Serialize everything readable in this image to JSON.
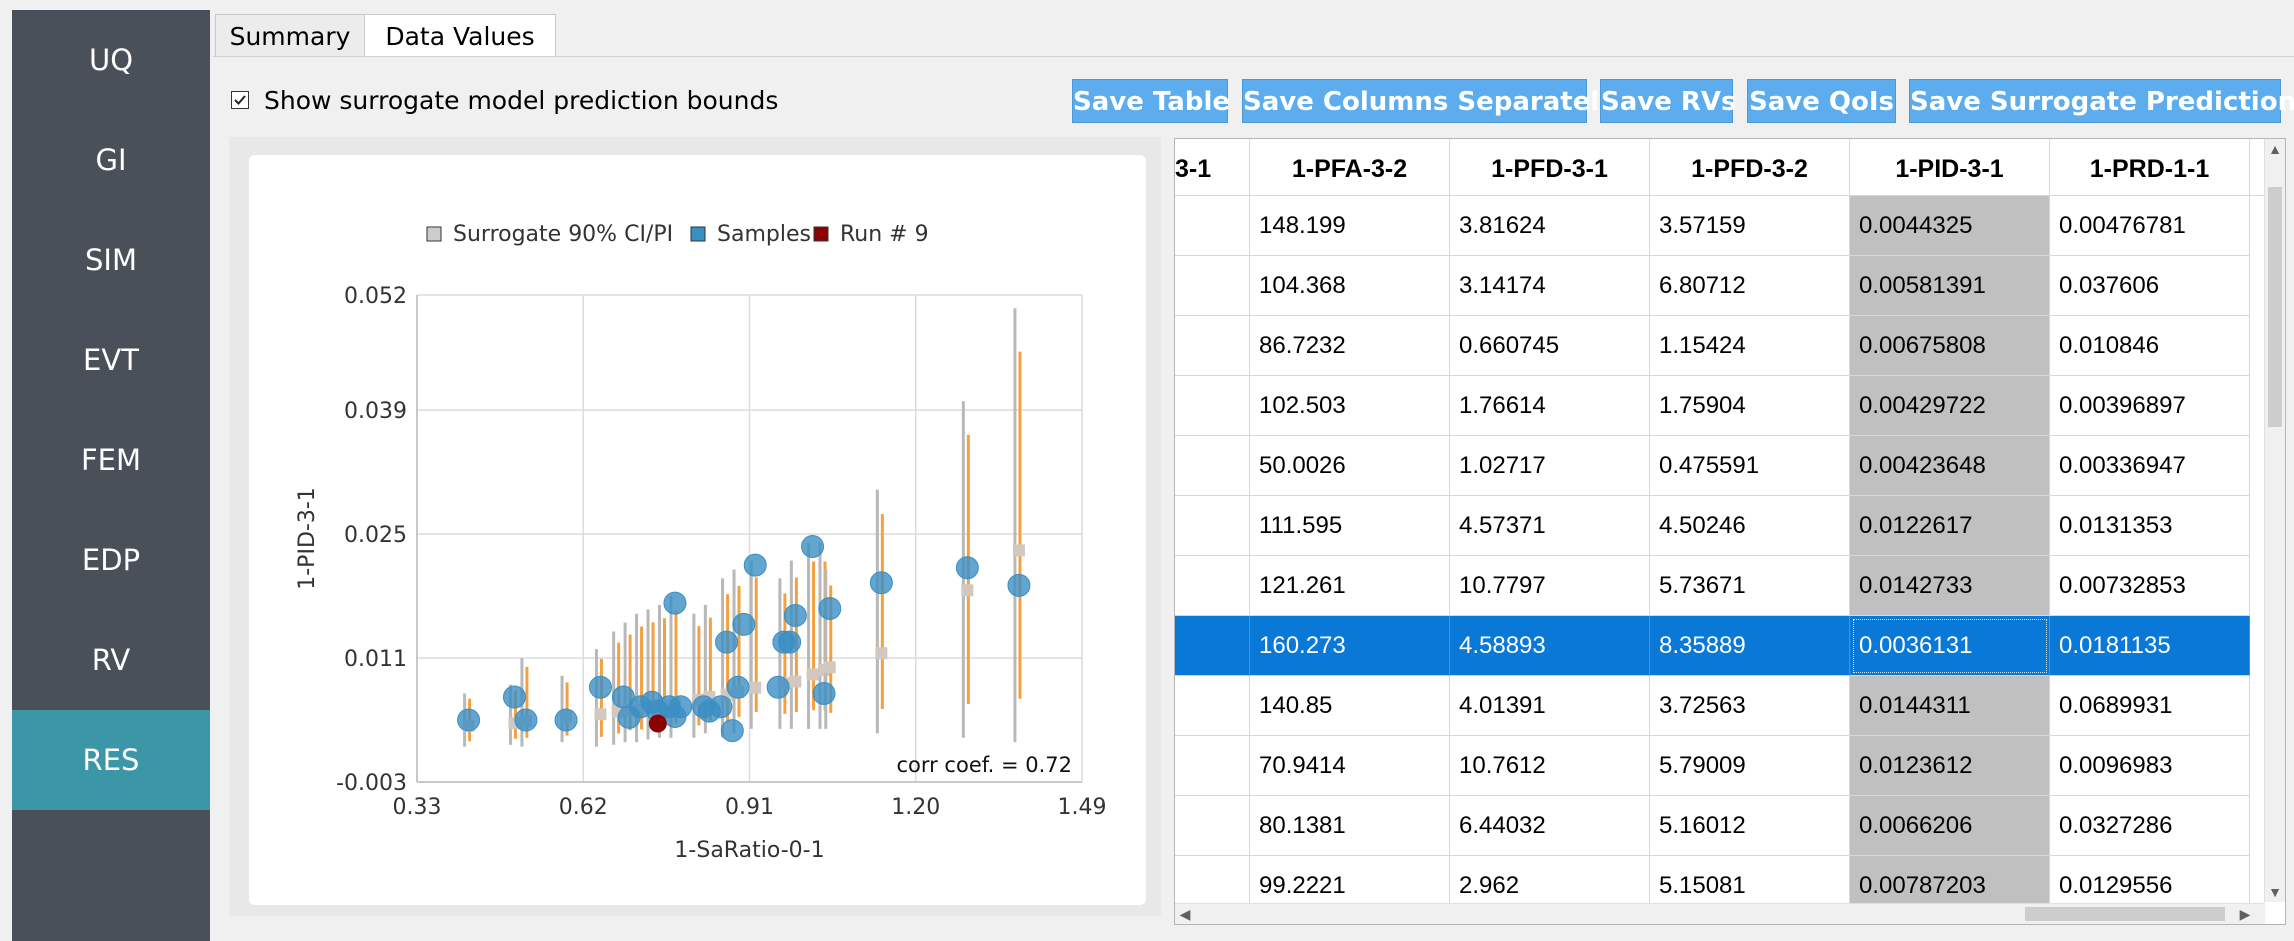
{
  "sidebar": {
    "items": [
      {
        "label": "UQ",
        "active": false
      },
      {
        "label": "GI",
        "active": false
      },
      {
        "label": "SIM",
        "active": false
      },
      {
        "label": "EVT",
        "active": false
      },
      {
        "label": "FEM",
        "active": false
      },
      {
        "label": "EDP",
        "active": false
      },
      {
        "label": "RV",
        "active": false
      },
      {
        "label": "RES",
        "active": true
      }
    ]
  },
  "tabs": [
    {
      "label": "Summary",
      "active": false
    },
    {
      "label": "Data Values",
      "active": true
    }
  ],
  "toolbar": {
    "show_bounds_label": "Show surrogate model prediction bounds",
    "show_bounds_checked": true,
    "buttons": [
      "Save Table",
      "Save Columns Separately",
      "Save RVs",
      "Save QoIs",
      "Save Surrogate Predictions"
    ],
    "button_color": "#5cacee"
  },
  "chart_data": {
    "type": "scatter",
    "xlabel": "1-SaRatio-0-1",
    "ylabel": "1-PID-3-1",
    "xlim": [
      0.33,
      1.49
    ],
    "ylim": [
      -0.003,
      0.052
    ],
    "xticks": [
      "0.33",
      "0.62",
      "0.91",
      "1.20",
      "1.49"
    ],
    "yticks": [
      "0.052",
      "0.039",
      "0.025",
      "0.011",
      "-0.003"
    ],
    "annotation": "corr coef. = 0.72",
    "legend": [
      {
        "label": "Surrogate 90% CI/PI",
        "color": "#cccccc"
      },
      {
        "label": "Samples",
        "color": "#3a8fc4"
      },
      {
        "label": "Run # 9",
        "color": "#8b0000"
      }
    ],
    "samples": [
      [
        0.42,
        0.004
      ],
      [
        0.5,
        0.0066
      ],
      [
        0.52,
        0.004
      ],
      [
        0.59,
        0.004
      ],
      [
        0.65,
        0.0077
      ],
      [
        0.69,
        0.0066
      ],
      [
        0.7,
        0.0043
      ],
      [
        0.72,
        0.0055
      ],
      [
        0.74,
        0.006
      ],
      [
        0.75,
        0.005
      ],
      [
        0.77,
        0.0055
      ],
      [
        0.78,
        0.0044
      ],
      [
        0.79,
        0.0055
      ],
      [
        0.78,
        0.0172
      ],
      [
        0.83,
        0.0055
      ],
      [
        0.84,
        0.005
      ],
      [
        0.86,
        0.0055
      ],
      [
        0.87,
        0.0128
      ],
      [
        0.88,
        0.0028
      ],
      [
        0.89,
        0.0077
      ],
      [
        0.9,
        0.0148
      ],
      [
        0.92,
        0.0215
      ],
      [
        0.96,
        0.0077
      ],
      [
        0.99,
        0.0158
      ],
      [
        0.98,
        0.0128
      ],
      [
        1.02,
        0.0236
      ],
      [
        1.04,
        0.007
      ],
      [
        1.05,
        0.0166
      ],
      [
        1.14,
        0.0195
      ],
      [
        1.29,
        0.0212
      ],
      [
        1.38,
        0.0192
      ],
      [
        0.97,
        0.0128
      ]
    ],
    "run_point": [
      0.75,
      0.0036
    ],
    "intervals": [
      [
        0.42,
        0.0032,
        0.0035,
        0.001,
        0.007
      ],
      [
        0.5,
        0.0035,
        0.0038,
        0.0012,
        0.008
      ],
      [
        0.52,
        0.0038,
        0.004,
        0.001,
        0.011
      ],
      [
        0.59,
        0.0042,
        0.0045,
        0.0015,
        0.009
      ],
      [
        0.65,
        0.0045,
        0.0048,
        0.001,
        0.012
      ],
      [
        0.68,
        0.0048,
        0.0051,
        0.0012,
        0.014
      ],
      [
        0.7,
        0.005,
        0.0053,
        0.0015,
        0.015
      ],
      [
        0.72,
        0.0053,
        0.0055,
        0.0015,
        0.016
      ],
      [
        0.74,
        0.0055,
        0.0057,
        0.0018,
        0.0165
      ],
      [
        0.76,
        0.0056,
        0.0058,
        0.002,
        0.017
      ],
      [
        0.78,
        0.0058,
        0.006,
        0.002,
        0.018
      ],
      [
        0.82,
        0.0062,
        0.0064,
        0.002,
        0.016
      ],
      [
        0.84,
        0.0065,
        0.0067,
        0.0025,
        0.017
      ],
      [
        0.87,
        0.0067,
        0.007,
        0.002,
        0.02
      ],
      [
        0.89,
        0.007,
        0.0073,
        0.0025,
        0.021
      ],
      [
        0.92,
        0.0075,
        0.0078,
        0.003,
        0.022
      ],
      [
        0.97,
        0.008,
        0.0083,
        0.003,
        0.02
      ],
      [
        0.99,
        0.0082,
        0.0085,
        0.003,
        0.022
      ],
      [
        1.02,
        0.009,
        0.0093,
        0.003,
        0.024
      ],
      [
        1.04,
        0.0095,
        0.0098,
        0.003,
        0.024
      ],
      [
        1.05,
        0.0098,
        0.0101,
        0.003,
        0.021
      ],
      [
        1.14,
        0.0114,
        0.0117,
        0.0025,
        0.03
      ],
      [
        1.29,
        0.0185,
        0.0188,
        0.002,
        0.04
      ],
      [
        1.38,
        0.023,
        0.0233,
        0.0015,
        0.0505
      ]
    ]
  },
  "table": {
    "columns": [
      "3-1",
      "1-PFA-3-2",
      "1-PFD-3-1",
      "1-PFD-3-2",
      "1-PID-3-1",
      "1-PRD-1-1"
    ],
    "highlight_column": 4,
    "selected_row": 7,
    "rows": [
      [
        "",
        "148.199",
        "3.81624",
        "3.57159",
        "0.0044325",
        "0.00476781"
      ],
      [
        "",
        "104.368",
        "3.14174",
        "6.80712",
        "0.00581391",
        "0.037606"
      ],
      [
        "",
        "86.7232",
        "0.660745",
        "1.15424",
        "0.00675808",
        "0.010846"
      ],
      [
        "",
        "102.503",
        "1.76614",
        "1.75904",
        "0.00429722",
        "0.00396897"
      ],
      [
        "",
        "50.0026",
        "1.02717",
        "0.475591",
        "0.00423648",
        "0.00336947"
      ],
      [
        "",
        "111.595",
        "4.57371",
        "4.50246",
        "0.0122617",
        "0.0131353"
      ],
      [
        "",
        "121.261",
        "10.7797",
        "5.73671",
        "0.0142733",
        "0.00732853"
      ],
      [
        "",
        "160.273",
        "4.58893",
        "8.35889",
        "0.0036131",
        "0.0181135"
      ],
      [
        "",
        "140.85",
        "4.01391",
        "3.72563",
        "0.0144311",
        "0.0689931"
      ],
      [
        "",
        "70.9414",
        "10.7612",
        "5.79009",
        "0.0123612",
        "0.0096983"
      ],
      [
        "",
        "80.1381",
        "6.44032",
        "5.16012",
        "0.0066206",
        "0.0327286"
      ],
      [
        "",
        "99.2221",
        "2.962",
        "5.15081",
        "0.00787203",
        "0.0129556"
      ]
    ]
  }
}
